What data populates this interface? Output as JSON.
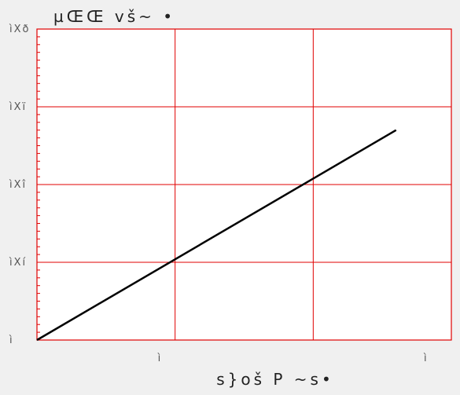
{
  "chart_data": {
    "type": "line",
    "title": "µŒŒ vš~ •",
    "xlabel": "s}oš P ~s•",
    "ylabel": "",
    "x_tick_labels": [
      "ì",
      "ì"
    ],
    "y_tick_labels": [
      "ì",
      "ìXí",
      "ìXî",
      "ìXï",
      "ìXð"
    ],
    "xlim": [
      0,
      3
    ],
    "ylim": [
      0,
      4
    ],
    "grid": true,
    "series": [
      {
        "x": [
          0,
          2.6
        ],
        "y": [
          0,
          2.7
        ]
      }
    ],
    "colors": {
      "grid": "#e00000",
      "axis": "#e00000",
      "line": "#000000",
      "background": "#f0f0f0",
      "plot_background": "#ffffff"
    }
  }
}
